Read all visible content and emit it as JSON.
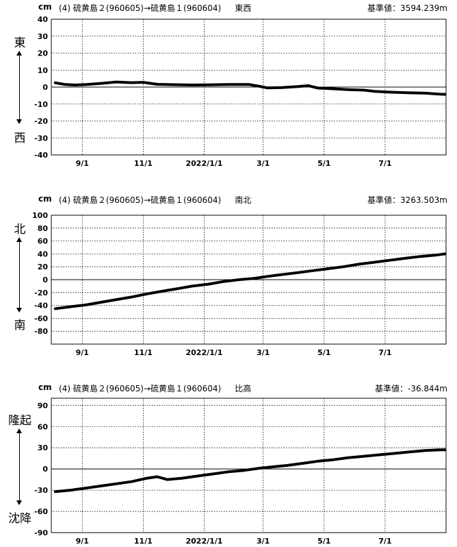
{
  "panels": [
    {
      "unit": "cm",
      "title": "(4) 硫黄島２(960605)→硫黄島１(960604)",
      "direction": "東西",
      "base_label": "基準値：3594.239m",
      "top_label": "東",
      "bottom_label": "西"
    },
    {
      "unit": "cm",
      "title": "(4) 硫黄島２(960605)→硫黄島１(960604)",
      "direction": "南北",
      "base_label": "基準値：3263.503m",
      "top_label": "北",
      "bottom_label": "南"
    },
    {
      "unit": "cm",
      "title": "(4) 硫黄島２(960605)→硫黄島１(960604)",
      "direction": "比高",
      "base_label": "基準値：-36.844m",
      "top_label": "隆起",
      "bottom_label": "沈降"
    }
  ],
  "chart_data": [
    {
      "type": "line",
      "ylabel": "cm",
      "ylim": [
        -40,
        40
      ],
      "yticks": [
        40,
        30,
        20,
        10,
        0,
        -10,
        -20,
        -30,
        -40
      ],
      "xlim": [
        "2021-08-01",
        "2022-08-31"
      ],
      "xticks": [
        {
          "date": "2021-09-01",
          "label": "9/1"
        },
        {
          "date": "2021-11-01",
          "label": "11/1"
        },
        {
          "date": "2022-01-01",
          "label": "2022/1/1"
        },
        {
          "date": "2022-03-01",
          "label": "3/1"
        },
        {
          "date": "2022-05-01",
          "label": "5/1"
        },
        {
          "date": "2022-07-01",
          "label": "7/1"
        }
      ],
      "grid": true,
      "points": [
        [
          "2021-08-05",
          2.5
        ],
        [
          "2021-08-15",
          1.5
        ],
        [
          "2021-08-25",
          1.2
        ],
        [
          "2021-09-05",
          1.5
        ],
        [
          "2021-09-20",
          2.2
        ],
        [
          "2021-10-05",
          3.0
        ],
        [
          "2021-10-20",
          2.6
        ],
        [
          "2021-11-01",
          2.8
        ],
        [
          "2021-11-15",
          1.6
        ],
        [
          "2021-12-01",
          1.4
        ],
        [
          "2021-12-20",
          1.2
        ],
        [
          "2022-01-05",
          1.3
        ],
        [
          "2022-01-25",
          1.5
        ],
        [
          "2022-02-15",
          1.5
        ],
        [
          "2022-02-25",
          0.5
        ],
        [
          "2022-03-05",
          -0.5
        ],
        [
          "2022-03-20",
          -0.3
        ],
        [
          "2022-04-05",
          0.3
        ],
        [
          "2022-04-15",
          0.8
        ],
        [
          "2022-04-25",
          -0.6
        ],
        [
          "2022-05-10",
          -1.0
        ],
        [
          "2022-05-25",
          -1.5
        ],
        [
          "2022-06-10",
          -1.8
        ],
        [
          "2022-06-20",
          -2.5
        ],
        [
          "2022-07-05",
          -3.0
        ],
        [
          "2022-07-25",
          -3.4
        ],
        [
          "2022-08-10",
          -3.6
        ],
        [
          "2022-08-25",
          -4.2
        ],
        [
          "2022-08-30",
          -4.3
        ]
      ]
    },
    {
      "type": "line",
      "ylabel": "cm",
      "ylim": [
        -100,
        100
      ],
      "yticks": [
        100,
        80,
        60,
        40,
        20,
        0,
        -20,
        -40,
        -60,
        -80
      ],
      "xlim": [
        "2021-08-01",
        "2022-08-31"
      ],
      "xticks": [
        {
          "date": "2021-09-01",
          "label": "9/1"
        },
        {
          "date": "2021-11-01",
          "label": "11/1"
        },
        {
          "date": "2022-01-01",
          "label": "2022/1/1"
        },
        {
          "date": "2022-03-01",
          "label": "3/1"
        },
        {
          "date": "2022-05-01",
          "label": "5/1"
        },
        {
          "date": "2022-07-01",
          "label": "7/1"
        }
      ],
      "grid": true,
      "points": [
        [
          "2021-08-05",
          -45
        ],
        [
          "2021-08-20",
          -42
        ],
        [
          "2021-09-05",
          -39
        ],
        [
          "2021-09-20",
          -35
        ],
        [
          "2021-10-05",
          -31
        ],
        [
          "2021-10-20",
          -27
        ],
        [
          "2021-11-05",
          -22
        ],
        [
          "2021-11-20",
          -18
        ],
        [
          "2021-12-05",
          -14
        ],
        [
          "2021-12-20",
          -10
        ],
        [
          "2022-01-05",
          -7
        ],
        [
          "2022-01-20",
          -3
        ],
        [
          "2022-02-05",
          0
        ],
        [
          "2022-02-20",
          2
        ],
        [
          "2022-03-05",
          5
        ],
        [
          "2022-03-20",
          8
        ],
        [
          "2022-04-05",
          11
        ],
        [
          "2022-04-20",
          14
        ],
        [
          "2022-05-05",
          17
        ],
        [
          "2022-05-20",
          20
        ],
        [
          "2022-06-05",
          24
        ],
        [
          "2022-06-20",
          27
        ],
        [
          "2022-07-05",
          30
        ],
        [
          "2022-07-20",
          33
        ],
        [
          "2022-08-05",
          36
        ],
        [
          "2022-08-20",
          38
        ],
        [
          "2022-08-30",
          40
        ]
      ]
    },
    {
      "type": "line",
      "ylabel": "cm",
      "ylim": [
        -90,
        100
      ],
      "yticks": [
        90,
        60,
        30,
        0,
        -30,
        -60,
        -90
      ],
      "xlim": [
        "2021-08-01",
        "2022-08-31"
      ],
      "xticks": [
        {
          "date": "2021-09-01",
          "label": "9/1"
        },
        {
          "date": "2021-11-01",
          "label": "11/1"
        },
        {
          "date": "2022-01-01",
          "label": "2022/1/1"
        },
        {
          "date": "2022-03-01",
          "label": "3/1"
        },
        {
          "date": "2022-05-01",
          "label": "5/1"
        },
        {
          "date": "2022-07-01",
          "label": "7/1"
        }
      ],
      "grid": true,
      "points": [
        [
          "2021-08-05",
          -32
        ],
        [
          "2021-08-20",
          -30
        ],
        [
          "2021-09-05",
          -27
        ],
        [
          "2021-09-20",
          -24
        ],
        [
          "2021-10-05",
          -21
        ],
        [
          "2021-10-20",
          -18
        ],
        [
          "2021-11-05",
          -13
        ],
        [
          "2021-11-15",
          -11
        ],
        [
          "2021-11-25",
          -15
        ],
        [
          "2021-12-10",
          -13
        ],
        [
          "2021-12-25",
          -10
        ],
        [
          "2022-01-10",
          -7
        ],
        [
          "2022-01-25",
          -4
        ],
        [
          "2022-02-10",
          -2
        ],
        [
          "2022-02-25",
          1
        ],
        [
          "2022-03-10",
          3
        ],
        [
          "2022-03-25",
          5
        ],
        [
          "2022-04-10",
          8
        ],
        [
          "2022-04-25",
          11
        ],
        [
          "2022-05-10",
          13
        ],
        [
          "2022-05-25",
          16
        ],
        [
          "2022-06-10",
          18
        ],
        [
          "2022-06-25",
          20
        ],
        [
          "2022-07-10",
          22
        ],
        [
          "2022-07-25",
          24
        ],
        [
          "2022-08-10",
          26
        ],
        [
          "2022-08-25",
          27
        ],
        [
          "2022-08-30",
          27
        ]
      ]
    }
  ]
}
